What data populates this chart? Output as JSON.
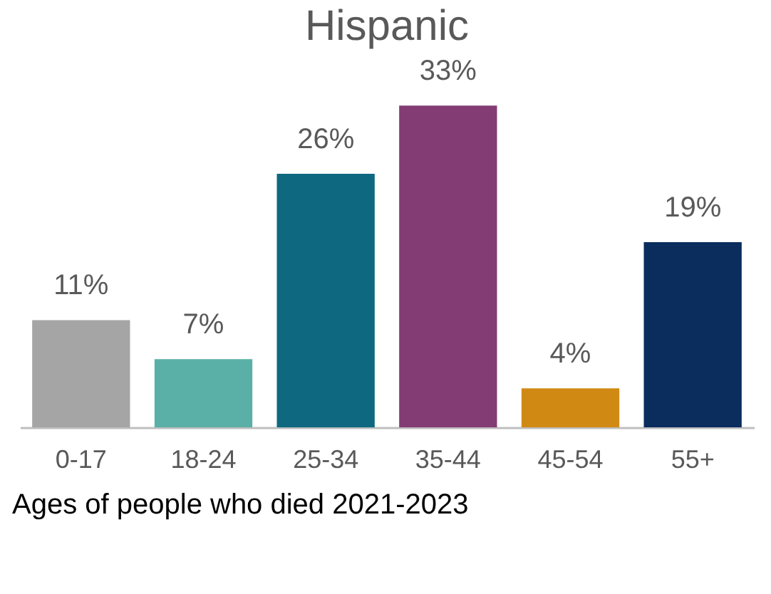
{
  "chart_data": {
    "type": "bar",
    "title": "Hispanic",
    "xlabel": "Ages of people who died 2021-2023",
    "categories": [
      "0-17",
      "18-24",
      "25-34",
      "35-44",
      "45-54",
      "55+"
    ],
    "values": [
      11,
      7,
      26,
      33,
      4,
      19
    ],
    "colors": [
      "#a5a5a5",
      "#5ab0a6",
      "#0e6880",
      "#843c74",
      "#d08a14",
      "#0b2d5e"
    ],
    "value_labels": [
      "11%",
      "7%",
      "26%",
      "33%",
      "4%",
      "19%"
    ],
    "grid": false,
    "legend": false
  }
}
